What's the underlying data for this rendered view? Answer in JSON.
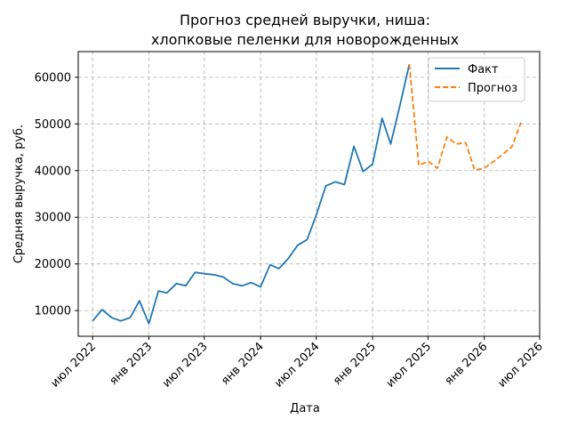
{
  "chart_data": {
    "type": "line",
    "title": "Прогноз средней выручки, ниша:",
    "subtitle": "хлопковые пеленки для новорожденных",
    "xlabel": "Дата",
    "ylabel": "Средняя выручка, руб.",
    "x_ticks": [
      "июл 2022",
      "янв 2023",
      "июл 2023",
      "янв 2024",
      "июл 2024",
      "янв 2025",
      "июл 2025",
      "янв 2026",
      "июл 2026"
    ],
    "y_ticks": [
      "10000",
      "20000",
      "30000",
      "40000",
      "50000",
      "60000"
    ],
    "xlim": [
      "2022-05-15",
      "2026-07-01"
    ],
    "ylim": [
      4500,
      65500
    ],
    "grid": true,
    "legend_position": "top-right",
    "series": [
      {
        "name": "Факт",
        "color": "#1f77b4",
        "style": "solid",
        "x": [
          "2022-07-01",
          "2022-08-01",
          "2022-09-01",
          "2022-10-01",
          "2022-11-01",
          "2022-12-01",
          "2023-01-01",
          "2023-02-01",
          "2023-03-01",
          "2023-04-01",
          "2023-05-01",
          "2023-06-01",
          "2023-07-01",
          "2023-08-01",
          "2023-09-01",
          "2023-10-01",
          "2023-11-01",
          "2023-12-01",
          "2024-01-01",
          "2024-02-01",
          "2024-03-01",
          "2024-04-01",
          "2024-05-01",
          "2024-06-01",
          "2024-07-01",
          "2024-08-01",
          "2024-09-01",
          "2024-10-01",
          "2024-11-01",
          "2024-12-01",
          "2025-01-01",
          "2025-02-01",
          "2025-03-01",
          "2025-04-01",
          "2025-05-01"
        ],
        "y": [
          7800,
          10200,
          8500,
          7800,
          8500,
          12100,
          7200,
          14200,
          13800,
          15800,
          15300,
          18200,
          17900,
          17700,
          17200,
          15800,
          15300,
          16000,
          15100,
          19800,
          19000,
          21200,
          24000,
          25200,
          30500,
          36700,
          37600,
          37000,
          45200,
          39800,
          41400,
          51200,
          45700,
          54200,
          62800
        ]
      },
      {
        "name": "Прогноз",
        "color": "#ff7f0e",
        "style": "dashed",
        "x": [
          "2025-05-01",
          "2025-06-01",
          "2025-07-01",
          "2025-08-01",
          "2025-09-01",
          "2025-10-01",
          "2025-11-01",
          "2025-12-01",
          "2026-01-01",
          "2026-02-01",
          "2026-03-01",
          "2026-04-01",
          "2026-05-01"
        ],
        "y": [
          62800,
          41100,
          42000,
          40500,
          47200,
          45700,
          46000,
          40100,
          40500,
          42000,
          43400,
          45100,
          50300
        ]
      }
    ]
  }
}
